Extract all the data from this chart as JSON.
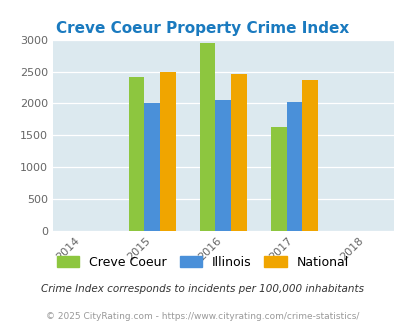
{
  "title": "Creve Coeur Property Crime Index",
  "years": [
    2015,
    2016,
    2017
  ],
  "x_ticks": [
    2014,
    2015,
    2016,
    2017,
    2018
  ],
  "creve_coeur": [
    2420,
    2940,
    1630
  ],
  "illinois": [
    2000,
    2050,
    2020
  ],
  "national": [
    2500,
    2460,
    2360
  ],
  "colors": {
    "creve_coeur": "#8dc63f",
    "illinois": "#4a90d9",
    "national": "#f0a500"
  },
  "ylim": [
    0,
    3000
  ],
  "yticks": [
    0,
    500,
    1000,
    1500,
    2000,
    2500,
    3000
  ],
  "bg_color": "#dce9ef",
  "title_color": "#1a7abf",
  "legend_labels": [
    "Creve Coeur",
    "Illinois",
    "National"
  ],
  "footnote1": "Crime Index corresponds to incidents per 100,000 inhabitants",
  "footnote2": "© 2025 CityRating.com - https://www.cityrating.com/crime-statistics/",
  "bar_width": 0.22
}
